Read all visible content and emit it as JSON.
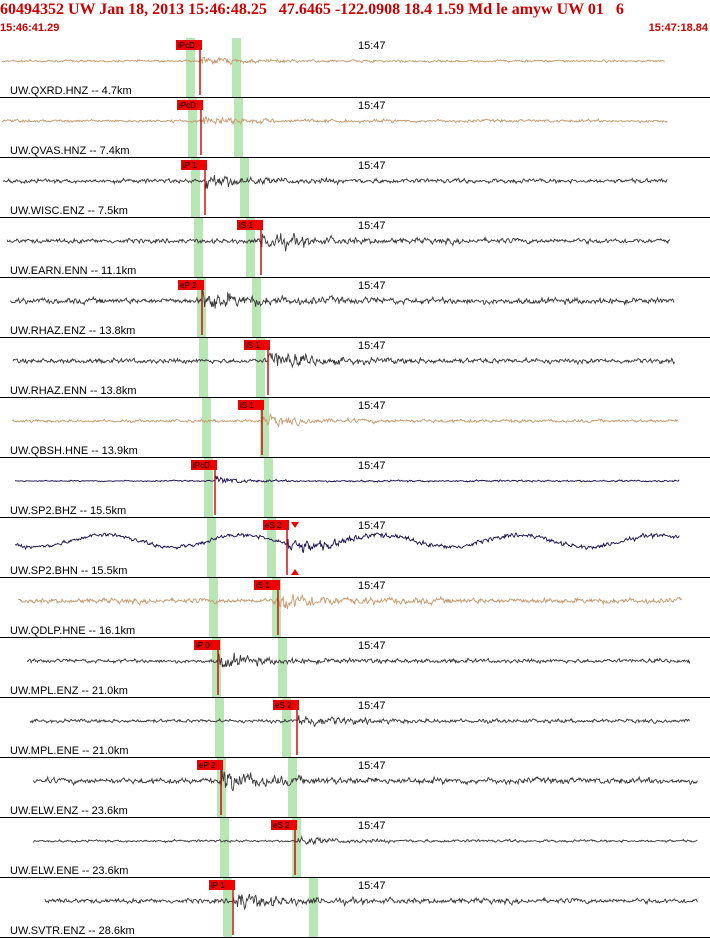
{
  "header": {
    "title": "60494352 UW Jan 18, 2013 15:46:48.25   47.6465 -122.0908 18.4 1.59 Md le amyw UW 01   6",
    "start_time": "15:46:41.29",
    "end_time": "15:47:18.84"
  },
  "colors": {
    "title": "#cc0000",
    "pick_box": "#ee0000",
    "pick_line": "#cc0000",
    "window_band": "#b8e6b4",
    "trace_tan": "#c89a6e",
    "trace_dark": "#3a3a3a",
    "trace_navy": "#1a1050",
    "separator": "#000000"
  },
  "channels": [
    {
      "label": "UW.QXRD.HNZ -- 4.7km",
      "time_label": "15:47",
      "pick": "iPcD",
      "color": "tan",
      "amp": 0.18
    },
    {
      "label": "UW.QVAS.HNZ -- 7.4km",
      "time_label": "15:47",
      "pick": "iPcD",
      "color": "tan",
      "amp": 0.28
    },
    {
      "label": "UW.WISC.ENZ -- 7.5km",
      "time_label": "15:47",
      "pick": "iP 1",
      "color": "dark",
      "amp": 0.5
    },
    {
      "label": "UW.EARN.ENN -- 11.1km",
      "time_label": "15:47",
      "pick": "iS 1",
      "color": "dark",
      "amp": 0.6
    },
    {
      "label": "UW.RHAZ.ENZ -- 13.8km",
      "time_label": "15:47",
      "pick": "eP 2",
      "color": "dark",
      "amp": 0.75
    },
    {
      "label": "UW.RHAZ.ENN -- 13.8km",
      "time_label": "15:47",
      "pick": "iS 1",
      "color": "dark",
      "amp": 0.6
    },
    {
      "label": "UW.QBSH.HNE -- 13.9km",
      "time_label": "15:47",
      "pick": "iS 1",
      "color": "tan",
      "amp": 0.3
    },
    {
      "label": "UW.SP2.BHZ -- 15.5km",
      "time_label": "15:47",
      "pick": "iPcD",
      "color": "navy",
      "amp": 0.12
    },
    {
      "label": "UW.SP2.BHN -- 15.5km",
      "time_label": "15:47",
      "pick": "eS 2",
      "color": "navy",
      "amp": 0.5
    },
    {
      "label": "UW.QDLP.HNE -- 16.1km",
      "time_label": "15:47",
      "pick": "iS 1",
      "color": "tan",
      "amp": 0.65
    },
    {
      "label": "UW.MPL.ENZ -- 21.0km",
      "time_label": "15:47",
      "pick": "iP 0",
      "color": "dark",
      "amp": 0.45
    },
    {
      "label": "UW.MPL.ENE -- 21.0km",
      "time_label": "15:47",
      "pick": "eS 2",
      "color": "dark",
      "amp": 0.4
    },
    {
      "label": "UW.ELW.ENZ -- 23.6km",
      "time_label": "15:47",
      "pick": "eP 2",
      "color": "dark",
      "amp": 0.75
    },
    {
      "label": "UW.ELW.ENE -- 23.6km",
      "time_label": "15:47",
      "pick": "eS 2",
      "color": "dark",
      "amp": 0.22
    },
    {
      "label": "UW.SVTR.ENZ -- 28.6km",
      "time_label": "15:47",
      "pick": "iP 1",
      "color": "dark",
      "amp": 0.6
    }
  ]
}
